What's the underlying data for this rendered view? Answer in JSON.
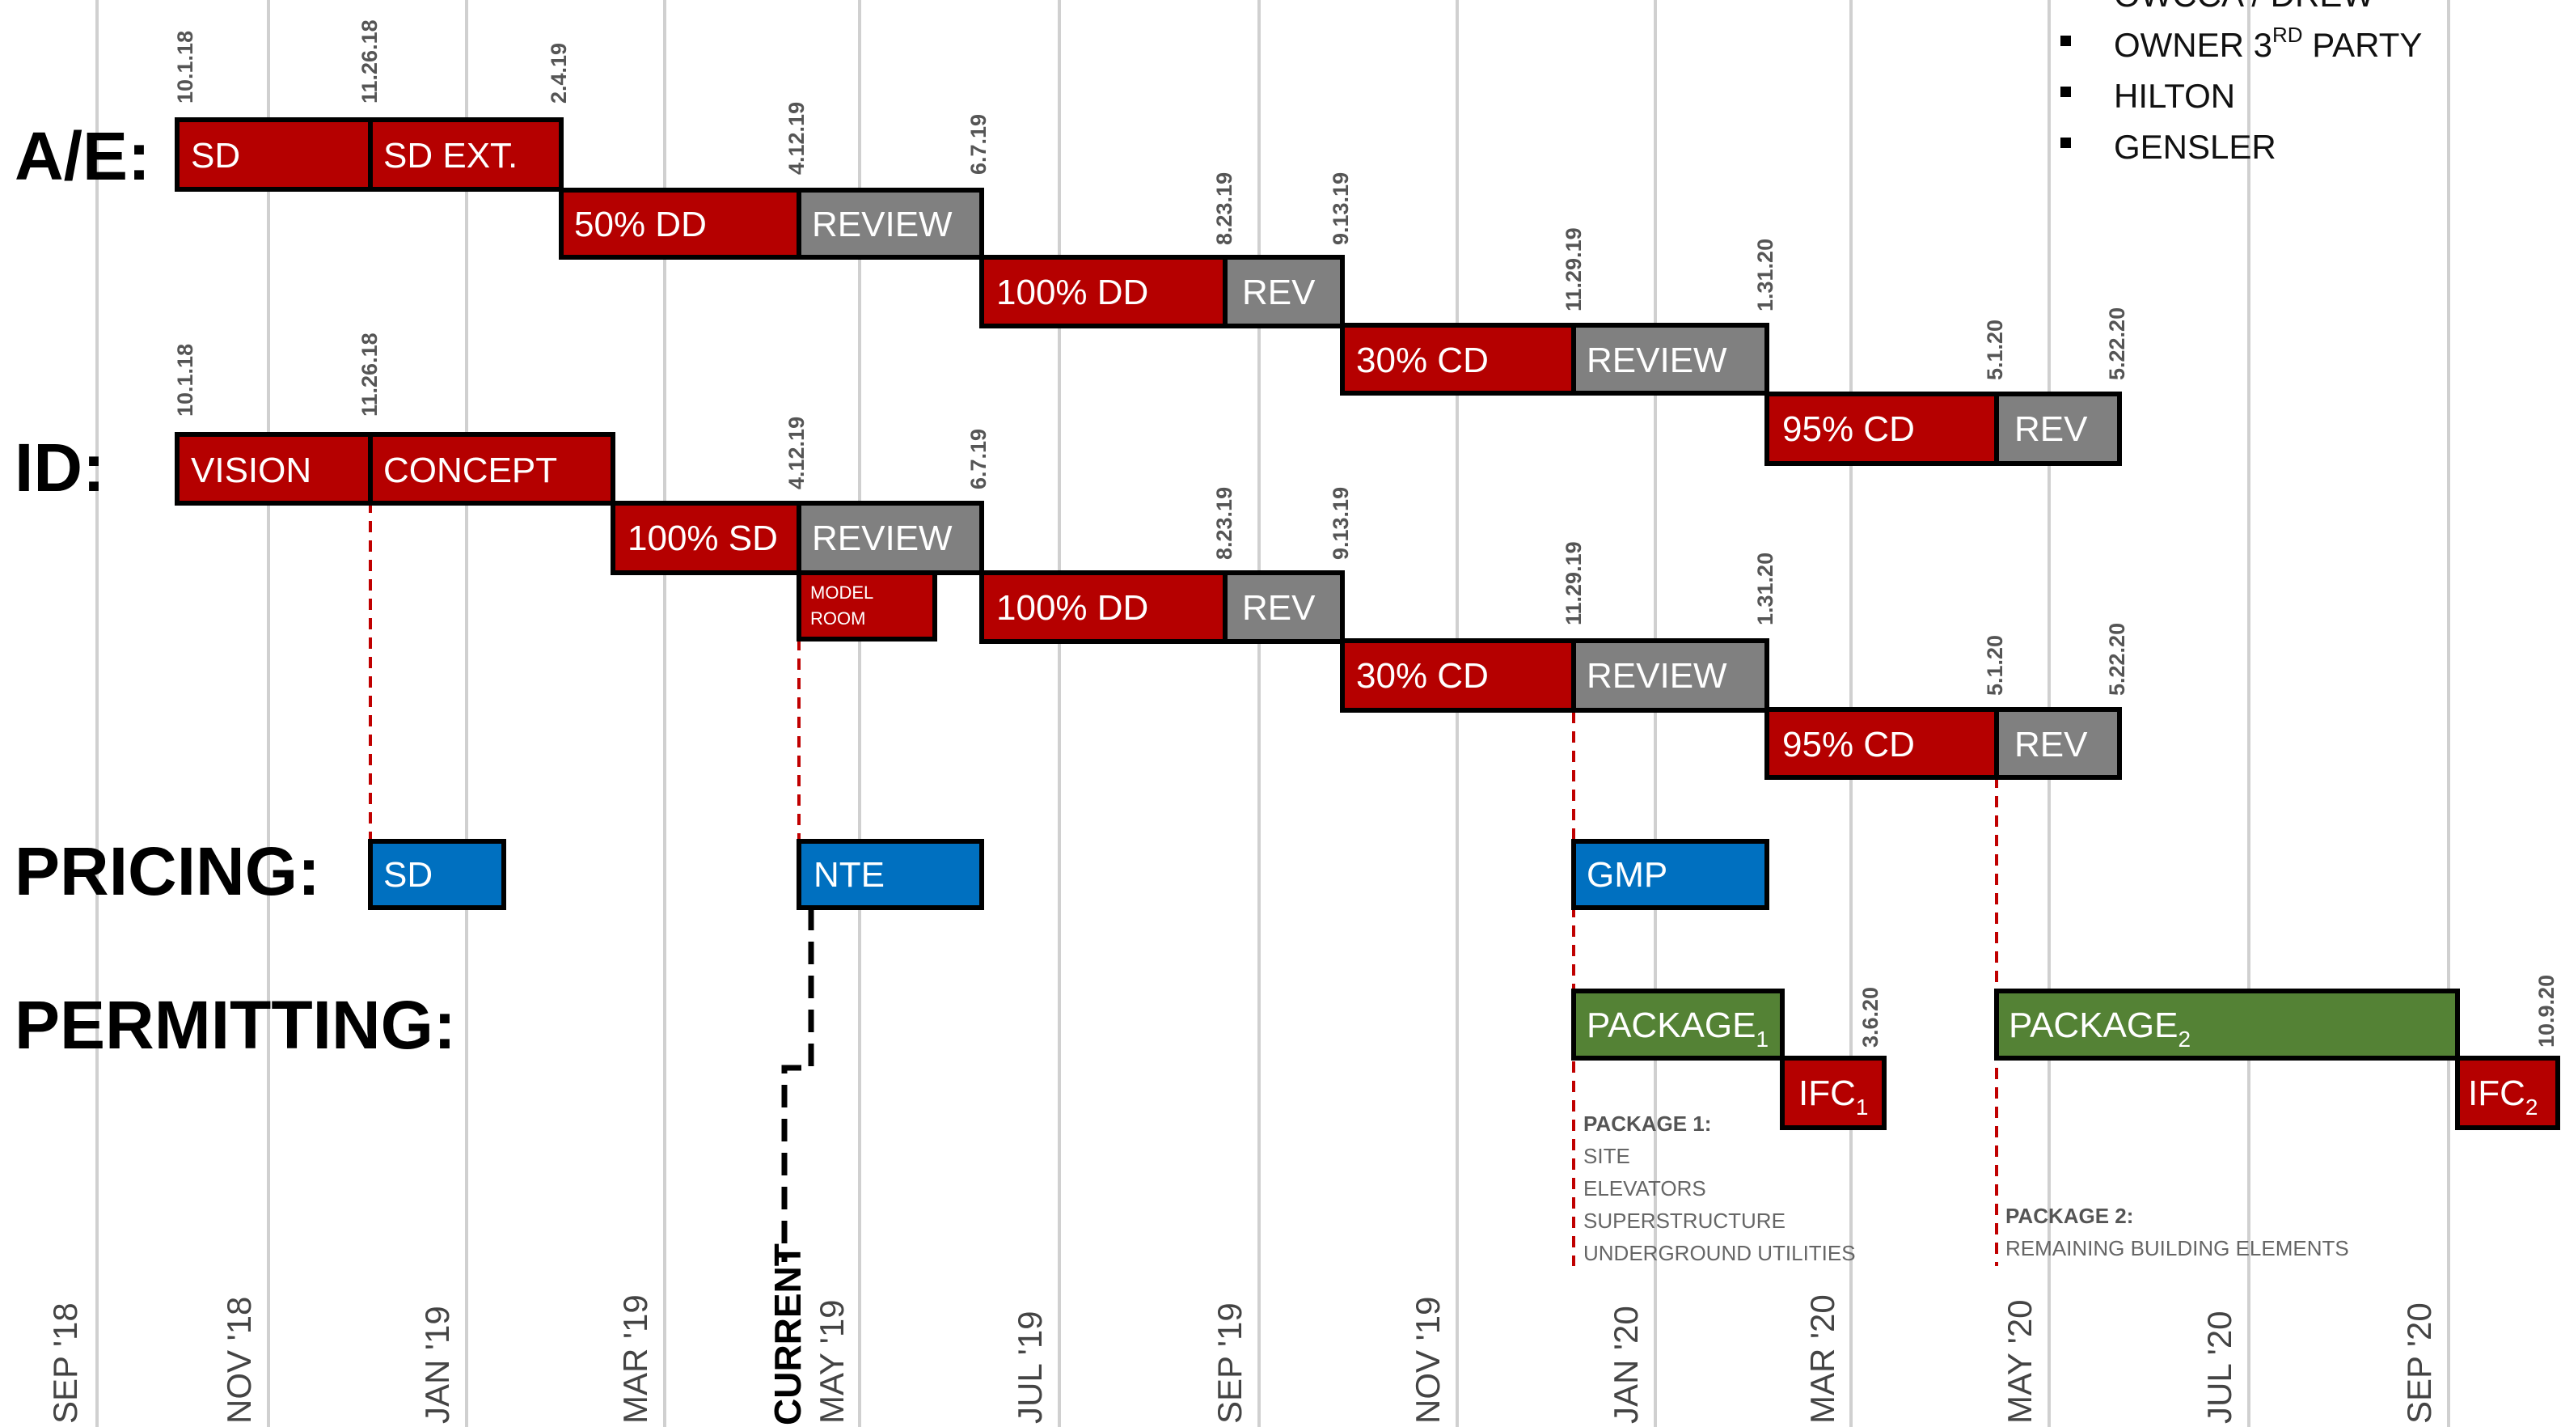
{
  "colors": {
    "design": "#b50000",
    "review": "#808080",
    "pricing": "#0070c0",
    "permit": "#548235",
    "milestone_line": "#c00000",
    "grid": "#d0d0d0"
  },
  "row_labels": {
    "ae": "A/E:",
    "id": "ID:",
    "pricing": "PRICING:",
    "permitting": "PERMITTING:"
  },
  "months": [
    "SEP '18",
    "NOV '18",
    "JAN '19",
    "MAR '19",
    "MAY '19",
    "JUL '19",
    "SEP '19",
    "NOV '19",
    "JAN '20",
    "MAR '20",
    "MAY '20",
    "JUL '20",
    "SEP '20"
  ],
  "legend": {
    "top_partial": "OWCCA / DREW",
    "items": [
      "OWNER 3RD PARTY",
      "HILTON",
      "GENSLER"
    ]
  },
  "tasks": {
    "ae_sd": "SD",
    "ae_sd_ext": "SD EXT.",
    "ae_50dd": "50% DD",
    "ae_review1": "REVIEW",
    "ae_100dd": "100% DD",
    "ae_rev1": "REV",
    "ae_30cd": "30% CD",
    "ae_review2": "REVIEW",
    "ae_95cd": "95% CD",
    "ae_rev2": "REV",
    "id_vision": "VISION",
    "id_concept": "CONCEPT",
    "id_100sd": "100% SD",
    "id_review1": "REVIEW",
    "id_model_room_1": "MODEL",
    "id_model_room_2": "ROOM",
    "id_100dd": "100% DD",
    "id_rev1": "REV",
    "id_30cd": "30% CD",
    "id_review2": "REVIEW",
    "id_95cd": "95% CD",
    "id_rev2": "REV",
    "pricing_sd": "SD",
    "pricing_nte": "NTE",
    "pricing_gmp": "GMP",
    "package1": "PACKAGE",
    "package1_sub": "1",
    "package2": "PACKAGE",
    "package2_sub": "2",
    "ifc1": "IFC",
    "ifc1_sub": "1",
    "ifc2": "IFC",
    "ifc2_sub": "2"
  },
  "dates": {
    "ae_start": "10.1.18",
    "ae_sd_end": "11.26.18",
    "ae_sdext_end": "2.4.19",
    "ae_dd50_end": "4.12.19",
    "ae_rev1_end": "6.7.19",
    "ae_dd100_end": "8.23.19",
    "ae_rev2_end": "9.13.19",
    "ae_cd30_end": "11.29.19",
    "ae_rev3_end": "1.31.20",
    "ae_cd95_end": "5.1.20",
    "ae_rev4_end": "5.22.20",
    "id_start": "10.1.18",
    "id_vision_end": "11.26.18",
    "id_sd_end": "4.12.19",
    "id_rev1_end": "6.7.19",
    "id_dd_end": "8.23.19",
    "id_rev2_end": "9.13.19",
    "id_cd30_end": "11.29.19",
    "id_rev3_end": "1.31.20",
    "id_cd95_end": "5.1.20",
    "id_rev4_end": "5.22.20",
    "ifc1": "3.6.20",
    "ifc2": "10.9.20"
  },
  "notes": {
    "package1_title": "PACKAGE 1:",
    "package1_items": [
      "SITE",
      "ELEVATORS",
      "SUPERSTRUCTURE",
      "UNDERGROUND UTILITIES"
    ],
    "package2_title": "PACKAGE 2:",
    "package2_items": [
      "REMAINING BUILDING ELEMENTS"
    ]
  },
  "current_label": "CURRENT"
}
